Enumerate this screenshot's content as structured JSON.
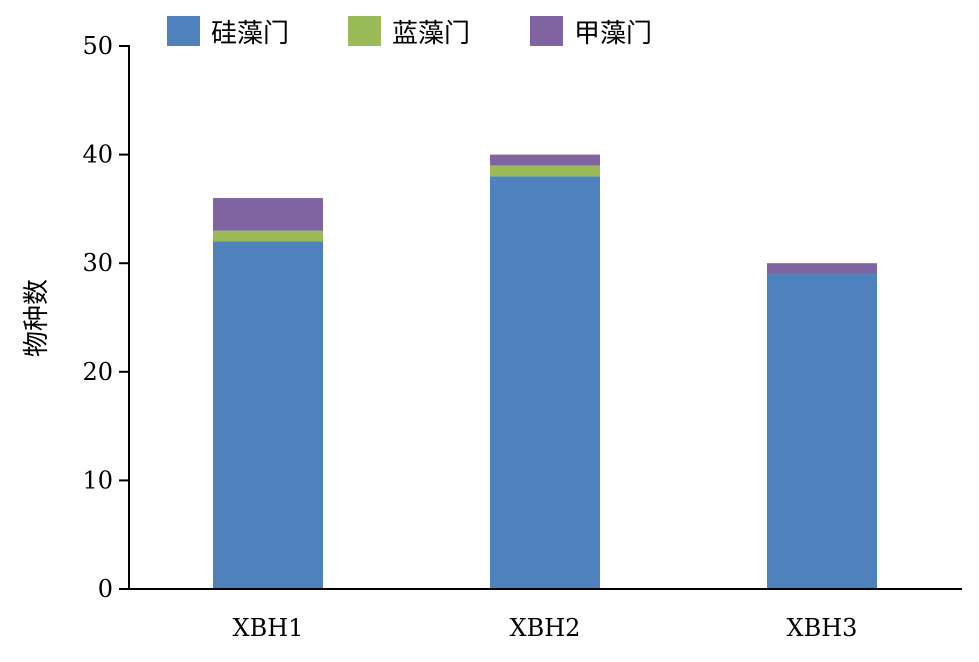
{
  "chart_data": {
    "type": "bar",
    "stacked": true,
    "title": "",
    "xlabel": "",
    "ylabel": "物种数",
    "ylim": [
      0,
      50
    ],
    "yticks": [
      0,
      10,
      20,
      30,
      40,
      50
    ],
    "grid": false,
    "legend_position": "top",
    "categories": [
      "XBH1",
      "XBH2",
      "XBH3"
    ],
    "series": [
      {
        "name": "硅藻门",
        "color": "#4f81bd",
        "values": [
          32,
          38,
          29
        ]
      },
      {
        "name": "蓝藻门",
        "color": "#9bbb59",
        "values": [
          1,
          1,
          0
        ]
      },
      {
        "name": "甲藻门",
        "color": "#8064a2",
        "values": [
          3,
          1,
          1
        ]
      }
    ]
  }
}
